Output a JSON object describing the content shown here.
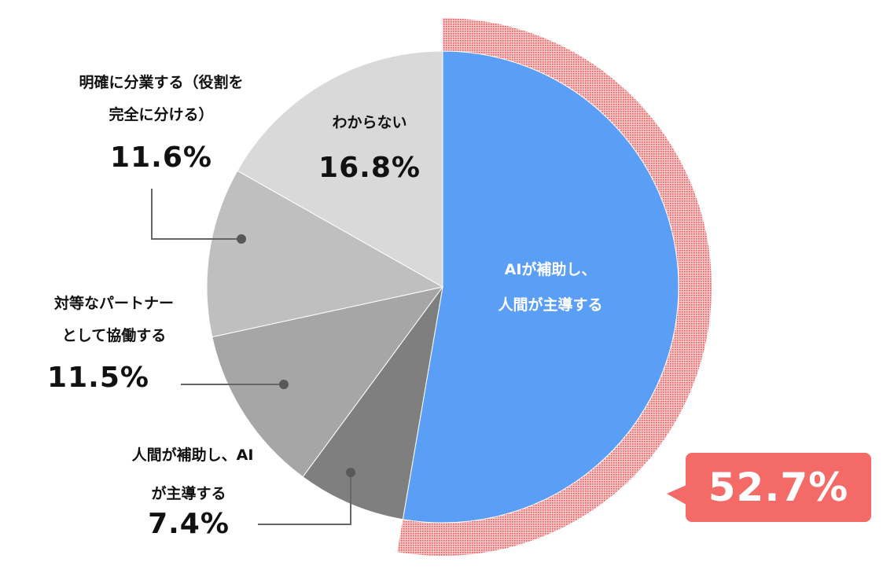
{
  "chart_data": {
    "type": "pie",
    "slices": [
      {
        "label_lines": [
          "AIが補助し、",
          "人間が主導する"
        ],
        "value": 52.7,
        "value_label": "52.7%",
        "color": "#5a9ff5"
      },
      {
        "label_lines": [
          "人間が補助し、AI",
          "が主導する"
        ],
        "value": 7.4,
        "value_label": "7.4%",
        "color": "#7f7f7f"
      },
      {
        "label_lines": [
          "対等なパートナー",
          "として協働する"
        ],
        "value": 11.5,
        "value_label": "11.5%",
        "color": "#a6a6a6"
      },
      {
        "label_lines": [
          "明確に分業する（役割を",
          "完全に分ける）"
        ],
        "value": 11.6,
        "value_label": "11.6%",
        "color": "#bfbfbf"
      },
      {
        "label_lines": [
          "わからない"
        ],
        "value": 16.8,
        "value_label": "16.8%",
        "color": "#d9d9d9"
      }
    ],
    "highlight": {
      "slice": 0,
      "value_label": "52.7%",
      "ring_color": "#e8585a",
      "callout_color": "#f46a66"
    },
    "legend": "none"
  }
}
